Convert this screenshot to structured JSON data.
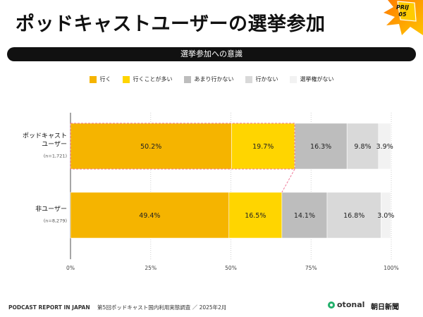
{
  "header": {
    "title": "ポッドキャストユーザーの選挙参加",
    "badge": "PRIJ 05"
  },
  "section": {
    "label": "選挙参加への意識"
  },
  "colors": {
    "badge_gradient": [
      "#ff7a00",
      "#ffc400"
    ],
    "series": [
      "#F5B400",
      "#FFD500",
      "#BDBDBD",
      "#D9D9D9",
      "#F2F2F2"
    ],
    "highlight": "#F07A9A",
    "axis": "#888888"
  },
  "chart_data": {
    "type": "bar",
    "orientation": "horizontal",
    "stacked": true,
    "legend_position": "top",
    "categories": [
      {
        "label": "ポッドキャスト\nユーザー",
        "n": "(n=1,721)"
      },
      {
        "label": "非ユーザー",
        "n": "(n=8,279)"
      }
    ],
    "series": [
      {
        "name": "行く",
        "values": [
          50.2,
          49.4
        ]
      },
      {
        "name": "行くことが多い",
        "values": [
          19.7,
          16.5
        ]
      },
      {
        "name": "あまり行かない",
        "values": [
          16.3,
          14.1
        ]
      },
      {
        "name": "行かない",
        "values": [
          9.8,
          16.8
        ]
      },
      {
        "name": "選挙権がない",
        "values": [
          3.9,
          3.0
        ]
      }
    ],
    "xlim": [
      0,
      100
    ],
    "x_ticks": [
      "0%",
      "25%",
      "50%",
      "75%",
      "100%"
    ],
    "grid": true,
    "highlight": "top-two-series-of-first-bar"
  },
  "footer": {
    "report": "PODCAST REPORT IN JAPAN",
    "description": "第5回ポッドキャスト国内利用実態調査 ／ 2025年2月",
    "logo_otonal": "otonal",
    "logo_asahi": "朝日新聞"
  }
}
